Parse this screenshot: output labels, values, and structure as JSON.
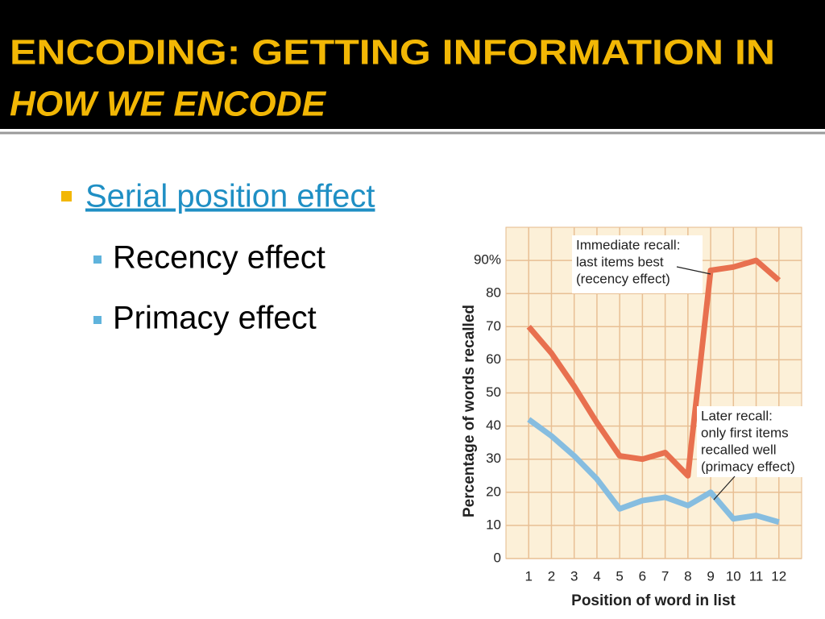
{
  "header": {
    "title": "ENCODING: GETTING INFORMATION IN",
    "subtitle": "HOW WE ENCODE"
  },
  "bullets": [
    {
      "text": "Serial position effect",
      "subitems": [
        "Recency effect",
        "Primacy effect"
      ]
    }
  ],
  "chart_data": {
    "type": "line",
    "x": [
      1,
      2,
      3,
      4,
      5,
      6,
      7,
      8,
      9,
      10,
      11,
      12
    ],
    "series": [
      {
        "color": "#e8704f",
        "values": [
          70,
          62,
          52,
          41,
          31,
          30,
          32,
          25,
          87,
          88,
          90,
          84
        ]
      },
      {
        "color": "#86bde0",
        "values": [
          42,
          37,
          31,
          24,
          15,
          17.5,
          18.5,
          16,
          20,
          12,
          13,
          11
        ]
      }
    ],
    "xlim": [
      0,
      13
    ],
    "xticks": [
      1,
      2,
      3,
      4,
      5,
      6,
      7,
      8,
      9,
      10,
      11,
      12
    ],
    "ylim": [
      0,
      100
    ],
    "yticks": [
      0,
      10,
      20,
      30,
      40,
      50,
      60,
      70,
      80,
      {
        "value": 90,
        "label": "90%"
      }
    ],
    "grid": true,
    "xlabel": "Position of word in list",
    "ylabel": "Percentage  of words recalled",
    "annotations": [
      {
        "lines": [
          "Immediate recall:",
          "last items best",
          "(recency effect)"
        ]
      },
      {
        "lines": [
          "Later recall:",
          "only first items",
          "recalled well",
          "(primacy effect)"
        ]
      }
    ]
  }
}
